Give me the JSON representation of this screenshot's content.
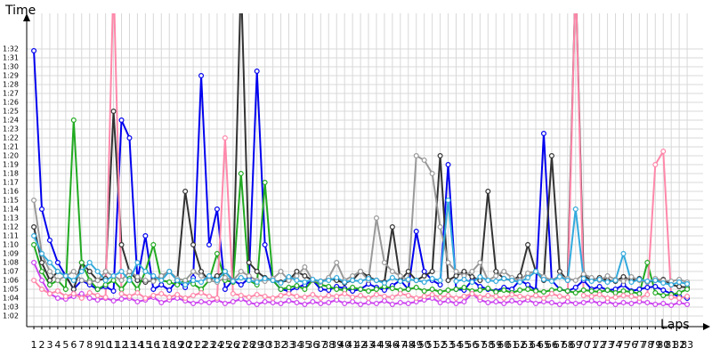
{
  "chart_data": {
    "type": "line",
    "x_label": "Laps",
    "y_label": "Time",
    "x": [
      1,
      2,
      3,
      4,
      5,
      6,
      7,
      8,
      9,
      10,
      11,
      12,
      13,
      14,
      15,
      16,
      17,
      18,
      19,
      20,
      21,
      22,
      23,
      24,
      25,
      26,
      27,
      28,
      29,
      30,
      31,
      32,
      33,
      34,
      35,
      36,
      37,
      38,
      39,
      40,
      41,
      42,
      43,
      44,
      45,
      46,
      47,
      48,
      49,
      50,
      51,
      52,
      53,
      54,
      55,
      56,
      57,
      58,
      59,
      60,
      61,
      62,
      63,
      64,
      65,
      66,
      67,
      68,
      69,
      70,
      71,
      72,
      73,
      74,
      75,
      76,
      77,
      78,
      79,
      80,
      81,
      82,
      83
    ],
    "xlim": [
      0.1,
      85
    ],
    "xticks": [
      1,
      2,
      3,
      4,
      5,
      6,
      7,
      8,
      9,
      10,
      11,
      12,
      13,
      14,
      15,
      16,
      17,
      18,
      19,
      20,
      21,
      22,
      23,
      24,
      25,
      26,
      27,
      28,
      29,
      30,
      31,
      32,
      33,
      34,
      35,
      36,
      37,
      38,
      39,
      40,
      41,
      42,
      43,
      44,
      45,
      46,
      47,
      48,
      49,
      50,
      51,
      52,
      53,
      54,
      55,
      56,
      57,
      58,
      59,
      60,
      61,
      62,
      63,
      64,
      65,
      66,
      67,
      68,
      69,
      70,
      71,
      72,
      73,
      74,
      75,
      76,
      77,
      78,
      79,
      80,
      81,
      82,
      83
    ],
    "ylim": [
      60.8,
      96
    ],
    "yticks": [
      {
        "value": 62,
        "label": "1:02"
      },
      {
        "value": 63,
        "label": "1:03"
      },
      {
        "value": 64,
        "label": "1:04"
      },
      {
        "value": 65,
        "label": "1:05"
      },
      {
        "value": 66,
        "label": "1:06"
      },
      {
        "value": 67,
        "label": "1:07"
      },
      {
        "value": 68,
        "label": "1:08"
      },
      {
        "value": 69,
        "label": "1:09"
      },
      {
        "value": 70,
        "label": "1:10"
      },
      {
        "value": 71,
        "label": "1:11"
      },
      {
        "value": 72,
        "label": "1:12"
      },
      {
        "value": 73,
        "label": "1:13"
      },
      {
        "value": 74,
        "label": "1:14"
      },
      {
        "value": 75,
        "label": "1:15"
      },
      {
        "value": 76,
        "label": "1:16"
      },
      {
        "value": 77,
        "label": "1:17"
      },
      {
        "value": 78,
        "label": "1:18"
      },
      {
        "value": 79,
        "label": "1:19"
      },
      {
        "value": 80,
        "label": "1:20"
      },
      {
        "value": 81,
        "label": "1:21"
      },
      {
        "value": 82,
        "label": "1:22"
      },
      {
        "value": 83,
        "label": "1:23"
      },
      {
        "value": 84,
        "label": "1:24"
      },
      {
        "value": 85,
        "label": "1:25"
      },
      {
        "value": 86,
        "label": "1:26"
      },
      {
        "value": 87,
        "label": "1:27"
      },
      {
        "value": 88,
        "label": "1:28"
      },
      {
        "value": 89,
        "label": "1:29"
      },
      {
        "value": 90,
        "label": "1:30"
      },
      {
        "value": 91,
        "label": "1:31"
      },
      {
        "value": 92,
        "label": "1:32"
      }
    ],
    "grid": true,
    "series": [
      {
        "color": "#0000ee",
        "values": [
          91.8,
          74,
          70.5,
          68,
          66.5,
          65,
          66,
          65.5,
          65,
          65.3,
          64.8,
          84,
          82,
          66,
          71,
          65,
          65.5,
          64.9,
          66,
          65.2,
          66.3,
          89,
          70,
          74,
          65,
          66,
          65.5,
          66.2,
          89.5,
          70,
          66,
          65,
          64.8,
          65.2,
          65.5,
          66,
          65,
          64.9,
          65.3,
          65.1,
          64.8,
          65,
          65.6,
          65.2,
          64.9,
          65.4,
          66,
          65,
          71.5,
          67,
          66,
          65.5,
          79,
          65,
          64.9,
          66,
          65.3,
          65,
          64.8,
          65.2,
          65,
          66,
          65.5,
          64.9,
          82.5,
          66,
          65,
          64.8,
          65.2,
          66,
          65,
          65.3,
          64.9,
          65,
          65.5,
          64.8,
          65,
          65.2,
          65.3,
          64.9,
          64.5,
          64.2,
          64
        ]
      },
      {
        "color": "#333333",
        "values": [
          72,
          68,
          66,
          67,
          66.5,
          65,
          68,
          67,
          66,
          66.2,
          85,
          70,
          67,
          66,
          65.8,
          66,
          66.5,
          67,
          66,
          76,
          70,
          67,
          66,
          66.5,
          67,
          66,
          100,
          68,
          67,
          66.3,
          66,
          65.8,
          66,
          67,
          66.5,
          66,
          65.9,
          66.2,
          66,
          65.7,
          66,
          67,
          66.4,
          66,
          65.8,
          72,
          66,
          67,
          66,
          66.5,
          67,
          80,
          66,
          66.5,
          67,
          66.4,
          66,
          76,
          67,
          66.2,
          66,
          66.5,
          70,
          67,
          66,
          80,
          67,
          66,
          100,
          66.5,
          66,
          66.3,
          66,
          65.9,
          66.4,
          66,
          66.2,
          65.8,
          66,
          66.1,
          65.5,
          65.3,
          65.2
        ]
      },
      {
        "color": "#22aa22",
        "values": [
          70,
          67,
          65.5,
          66,
          65,
          84,
          68,
          66,
          65,
          65.5,
          66,
          65,
          66.2,
          65,
          67,
          70,
          66,
          65.8,
          65.5,
          66,
          65.6,
          65,
          66,
          69,
          66,
          65.8,
          78,
          66,
          65.5,
          77,
          66,
          65,
          65.2,
          65.4,
          65,
          66,
          65.5,
          65.3,
          65,
          64.9,
          65.2,
          65,
          64.8,
          65,
          65.3,
          65.1,
          64.9,
          65,
          65.2,
          64.8,
          65,
          64.7,
          64.9,
          65,
          65.2,
          64.8,
          64.9,
          65.1,
          64.7,
          64.9,
          64.6,
          64.9,
          65,
          64.8,
          64.7,
          64.9,
          65,
          64.8,
          64.6,
          64.9,
          64.8,
          64.7,
          64.9,
          64.6,
          64.8,
          64.7,
          64.5,
          68,
          64.6,
          64.3,
          64.4,
          64.6,
          65
        ]
      },
      {
        "color": "#cc44ee",
        "values": [
          68,
          66,
          64.5,
          64,
          63.9,
          64.2,
          64.5,
          64,
          63.8,
          64,
          63.7,
          63.9,
          64,
          63.6,
          63.8,
          64.1,
          63.5,
          63.8,
          64,
          63.7,
          63.4,
          63.6,
          63.5,
          63.8,
          63.4,
          63.6,
          63.9,
          63.5,
          63.3,
          63.6,
          63.5,
          63.4,
          63.7,
          63.5,
          63.3,
          63.6,
          63.4,
          63.5,
          63.8,
          63.4,
          63.6,
          63.3,
          63.5,
          63.4,
          63.7,
          63.3,
          63.5,
          63.4,
          63.6,
          63.8,
          64,
          63.5,
          63.7,
          63.4,
          63.6,
          64.5,
          63.8,
          63.5,
          63.6,
          63.4,
          63.7,
          63.5,
          63.8,
          63.4,
          63.6,
          63.5,
          63.3,
          63.6,
          63.4,
          63.5,
          63.7,
          63.4,
          63.6,
          63.3,
          63.5,
          63.4,
          63.6,
          63.5,
          63.3,
          63.4,
          63.2,
          63.5,
          63.3
        ]
      },
      {
        "color": "#999999",
        "values": [
          75,
          69,
          67,
          66,
          66.5,
          67,
          66,
          65.8,
          66,
          67,
          66.5,
          66,
          67,
          66.4,
          66,
          65.9,
          66.5,
          67,
          66.2,
          66,
          67,
          66.5,
          66,
          65.8,
          66.3,
          66,
          67,
          66.5,
          66,
          65.9,
          66.2,
          67,
          66,
          66.5,
          67.5,
          66,
          65.8,
          66.3,
          68,
          66,
          66.5,
          67,
          66,
          73,
          68,
          67,
          66.5,
          66,
          80,
          79.5,
          78,
          72,
          68,
          67,
          66.5,
          67,
          68,
          66,
          66.5,
          67,
          66.3,
          66,
          66.8,
          67,
          66.4,
          66,
          66.5,
          66.2,
          66,
          66.7,
          66.3,
          66,
          66.5,
          66.1,
          65.9,
          66.4,
          66,
          65.8,
          66.2,
          66,
          65.9,
          66.1,
          65.8
        ]
      },
      {
        "color": "#ff88aa",
        "values": [
          66,
          65,
          64.5,
          64.8,
          64.2,
          64.5,
          64,
          64.6,
          64.3,
          64.1,
          100,
          64.5,
          64.2,
          64.6,
          64,
          64.3,
          64.5,
          64.1,
          64.4,
          64,
          64.3,
          64.6,
          64.2,
          64,
          82,
          64.5,
          64.3,
          64.1,
          64.4,
          64.2,
          64,
          64.3,
          64.5,
          64.2,
          64.1,
          64.4,
          64,
          64.3,
          64.2,
          64.5,
          64.1,
          64.3,
          64,
          64.4,
          64.2,
          64.1,
          64.5,
          64.3,
          64,
          64.2,
          64.4,
          64.1,
          64.3,
          64,
          64.2,
          64.5,
          64.1,
          64.3,
          64.2,
          64,
          64.4,
          64.2,
          64.1,
          64.3,
          64,
          64.5,
          64.2,
          64.1,
          100,
          64.3,
          64.2,
          64.4,
          64,
          64.1,
          64.3,
          64.2,
          64,
          64.4,
          79,
          80.5,
          64.1,
          64,
          64.2
        ]
      },
      {
        "color": "#33aadd",
        "values": [
          71,
          69,
          68,
          67,
          66.5,
          66,
          67,
          68,
          67,
          66,
          66.5,
          67,
          66,
          68,
          67,
          66.5,
          66,
          67,
          66,
          65.5,
          66,
          65.8,
          66.5,
          66,
          67,
          65.9,
          66.3,
          66,
          65.8,
          66.2,
          66,
          65.7,
          66.4,
          66,
          65.8,
          66.1,
          65.9,
          66,
          66.3,
          65.8,
          66,
          65.9,
          66.2,
          66,
          65.7,
          66.3,
          65.9,
          66.1,
          66,
          65.8,
          66.2,
          66,
          75,
          65.9,
          66.1,
          65.8,
          66.4,
          66,
          65.9,
          66.2,
          66,
          65.8,
          66.3,
          67,
          66.1,
          65.9,
          66.4,
          66,
          74,
          66.2,
          65.9,
          66.1,
          65.8,
          66,
          69,
          65.8,
          66.1,
          65.9,
          66,
          65.7,
          65.5,
          65.8,
          65.6
        ]
      }
    ]
  }
}
